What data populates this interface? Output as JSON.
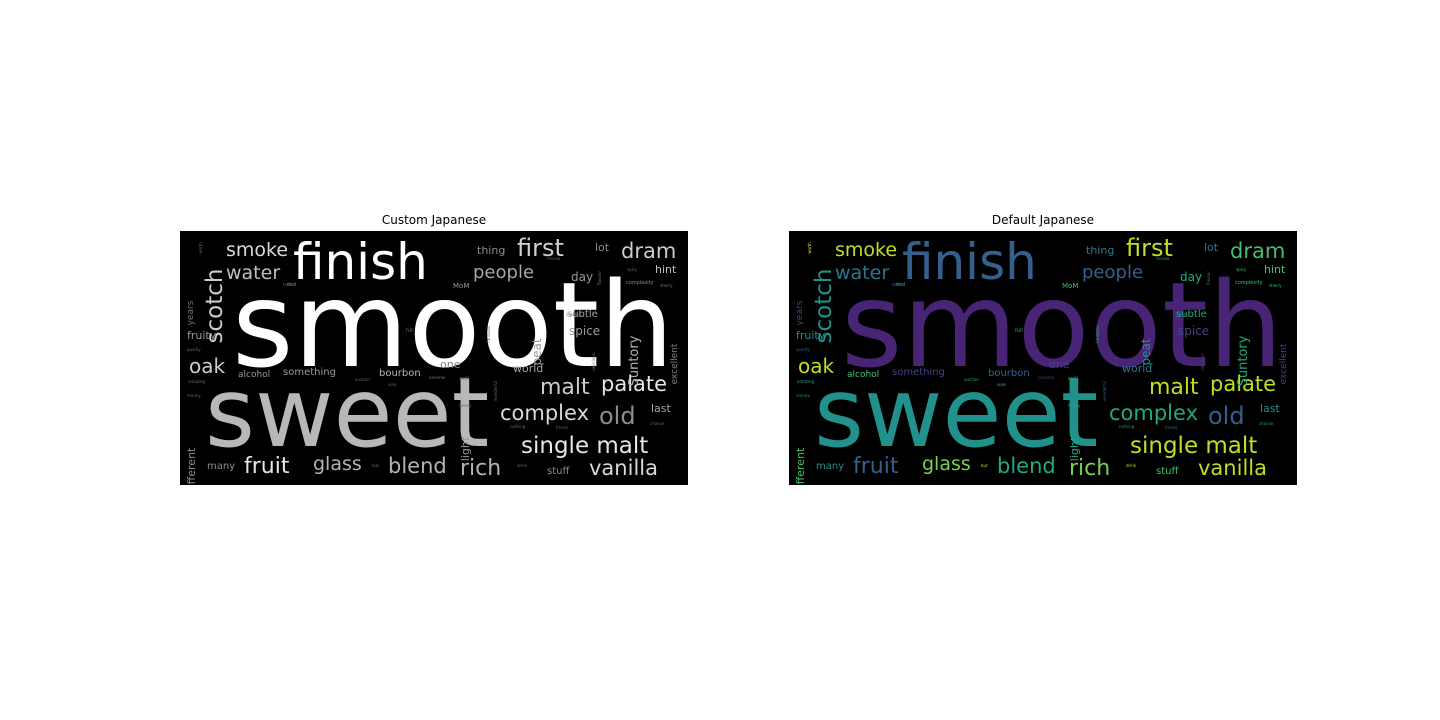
{
  "figure": {
    "panels": [
      {
        "title": "Custom Japanese",
        "palette": "grayscale"
      },
      {
        "title": "Default Japanese",
        "palette": "viridis"
      }
    ]
  },
  "words": [
    {
      "text": "smooth",
      "rank": 1,
      "shade": 1.0,
      "v": 0.1
    },
    {
      "text": "sweet",
      "rank": 2,
      "shade": 0.72,
      "v": 0.45
    },
    {
      "text": "finish",
      "rank": 3,
      "shade": 1.0,
      "v": 0.28
    },
    {
      "text": "first",
      "rank": 4,
      "shade": 0.82,
      "v": 0.85
    },
    {
      "text": "dram",
      "rank": 4,
      "shade": 0.8,
      "v": 0.7
    },
    {
      "text": "scotch",
      "rank": 4,
      "shade": 0.8,
      "v": 0.48
    },
    {
      "text": "smoke",
      "rank": 5,
      "shade": 0.85,
      "v": 0.86
    },
    {
      "text": "water",
      "rank": 5,
      "shade": 0.75,
      "v": 0.35
    },
    {
      "text": "people",
      "rank": 5,
      "shade": 0.65,
      "v": 0.3
    },
    {
      "text": "palate",
      "rank": 5,
      "shade": 0.9,
      "v": 0.88
    },
    {
      "text": "malt",
      "rank": 5,
      "shade": 0.8,
      "v": 0.9
    },
    {
      "text": "oak",
      "rank": 5,
      "shade": 0.8,
      "v": 0.85
    },
    {
      "text": "complex",
      "rank": 5,
      "shade": 0.85,
      "v": 0.6
    },
    {
      "text": "old",
      "rank": 5,
      "shade": 0.55,
      "v": 0.25
    },
    {
      "text": "single malt",
      "rank": 5,
      "shade": 0.9,
      "v": 0.88
    },
    {
      "text": "fruit",
      "rank": 5,
      "shade": 0.9,
      "v": 0.28
    },
    {
      "text": "glass",
      "rank": 5,
      "shade": 0.7,
      "v": 0.78
    },
    {
      "text": "blend",
      "rank": 5,
      "shade": 0.7,
      "v": 0.55
    },
    {
      "text": "rich",
      "rank": 5,
      "shade": 0.7,
      "v": 0.8
    },
    {
      "text": "vanilla",
      "rank": 5,
      "shade": 0.85,
      "v": 0.88
    },
    {
      "text": "thing",
      "rank": 6,
      "shade": 0.55,
      "v": 0.35
    },
    {
      "text": "lot",
      "rank": 6,
      "shade": 0.55,
      "v": 0.4
    },
    {
      "text": "day",
      "rank": 6,
      "shade": 0.6,
      "v": 0.6
    },
    {
      "text": "hint",
      "rank": 6,
      "shade": 0.75,
      "v": 0.72
    },
    {
      "text": "fruity",
      "rank": 6,
      "shade": 0.6,
      "v": 0.5
    },
    {
      "text": "subtle",
      "rank": 6,
      "shade": 0.65,
      "v": 0.55
    },
    {
      "text": "spice",
      "rank": 6,
      "shade": 0.6,
      "v": 0.18
    },
    {
      "text": "peat",
      "rank": 6,
      "shade": 0.6,
      "v": 0.48
    },
    {
      "text": "Suntory",
      "rank": 6,
      "shade": 0.7,
      "v": 0.62
    },
    {
      "text": "excellent",
      "rank": 6,
      "shade": 0.5,
      "v": 0.18
    },
    {
      "text": "years",
      "rank": 6,
      "shade": 0.45,
      "v": 0.22
    },
    {
      "text": "one",
      "rank": 6,
      "shade": 0.5,
      "v": 0.15
    },
    {
      "text": "world",
      "rank": 6,
      "shade": 0.65,
      "v": 0.4
    },
    {
      "text": "something",
      "rank": 6,
      "shade": 0.6,
      "v": 0.2
    },
    {
      "text": "alcohol",
      "rank": 6,
      "shade": 0.6,
      "v": 0.65
    },
    {
      "text": "bourbon",
      "rank": 6,
      "shade": 0.7,
      "v": 0.25
    },
    {
      "text": "last",
      "rank": 6,
      "shade": 0.65,
      "v": 0.45
    },
    {
      "text": "light",
      "rank": 6,
      "shade": 0.6,
      "v": 0.55
    },
    {
      "text": "different",
      "rank": 6,
      "shade": 0.55,
      "v": 0.7
    },
    {
      "text": "many",
      "rank": 6,
      "shade": 0.55,
      "v": 0.5
    },
    {
      "text": "stuff",
      "rank": 6,
      "shade": 0.55,
      "v": 0.65
    },
    {
      "text": "MoM",
      "rank": 7,
      "shade": 0.6,
      "v": 0.7
    },
    {
      "text": "complexity",
      "rank": 7,
      "shade": 0.55,
      "v": 0.68
    },
    {
      "text": "mouth",
      "rank": 7,
      "shade": 0.5,
      "v": 0.35
    },
    {
      "text": "fantastic",
      "rank": 7,
      "shade": 0.45,
      "v": 0.6
    },
    {
      "text": "delicious",
      "rank": 7,
      "shade": 0.45,
      "v": 0.15
    },
    {
      "text": "flavour",
      "rank": 7,
      "shade": 0.45,
      "v": 0.4
    },
    {
      "text": "caramel",
      "rank": 7,
      "shade": 0.45,
      "v": 0.22
    },
    {
      "text": "sherry",
      "rank": 7,
      "shade": 0.45,
      "v": 0.7
    },
    {
      "text": "end",
      "rank": 7,
      "shade": 0.45,
      "v": 0.5
    },
    {
      "text": "review",
      "rank": 7,
      "shade": 0.4,
      "v": 0.45
    },
    {
      "text": "quality",
      "rank": 7,
      "shade": 0.4,
      "v": 0.25
    },
    {
      "text": "amazing",
      "rank": 7,
      "shade": 0.4,
      "v": 0.55
    },
    {
      "text": "money",
      "rank": 7,
      "shade": 0.4,
      "v": 0.45
    },
    {
      "text": "honey",
      "rank": 7,
      "shade": 0.4,
      "v": 0.55
    },
    {
      "text": "nothing",
      "rank": 7,
      "shade": 0.4,
      "v": 0.45
    },
    {
      "text": "friend",
      "rank": 7,
      "shade": 0.4,
      "v": 0.4
    },
    {
      "text": "chance",
      "rank": 7,
      "shade": 0.4,
      "v": 0.6
    },
    {
      "text": "drink",
      "rank": 7,
      "shade": 0.4,
      "v": 0.9
    },
    {
      "text": "sure",
      "rank": 7,
      "shade": 0.4,
      "v": 0.7
    },
    {
      "text": "full",
      "rank": 7,
      "shade": 0.4,
      "v": 0.6
    },
    {
      "text": "well",
      "rank": 7,
      "shade": 0.4,
      "v": 0.58
    },
    {
      "text": "spicy",
      "rank": 7,
      "shade": 0.4,
      "v": 0.7
    },
    {
      "text": "wonderful",
      "rank": 7,
      "shade": 0.4,
      "v": 0.3
    },
    {
      "text": "toffee",
      "rank": 7,
      "shade": 0.4,
      "v": 0.35
    },
    {
      "text": "auction",
      "rank": 7,
      "shade": 0.4,
      "v": 0.6
    },
    {
      "text": "but",
      "rank": 7,
      "shade": 0.4,
      "v": 0.9
    },
    {
      "text": "worth",
      "rank": 7,
      "shade": 0.4,
      "v": 0.95
    }
  ]
}
